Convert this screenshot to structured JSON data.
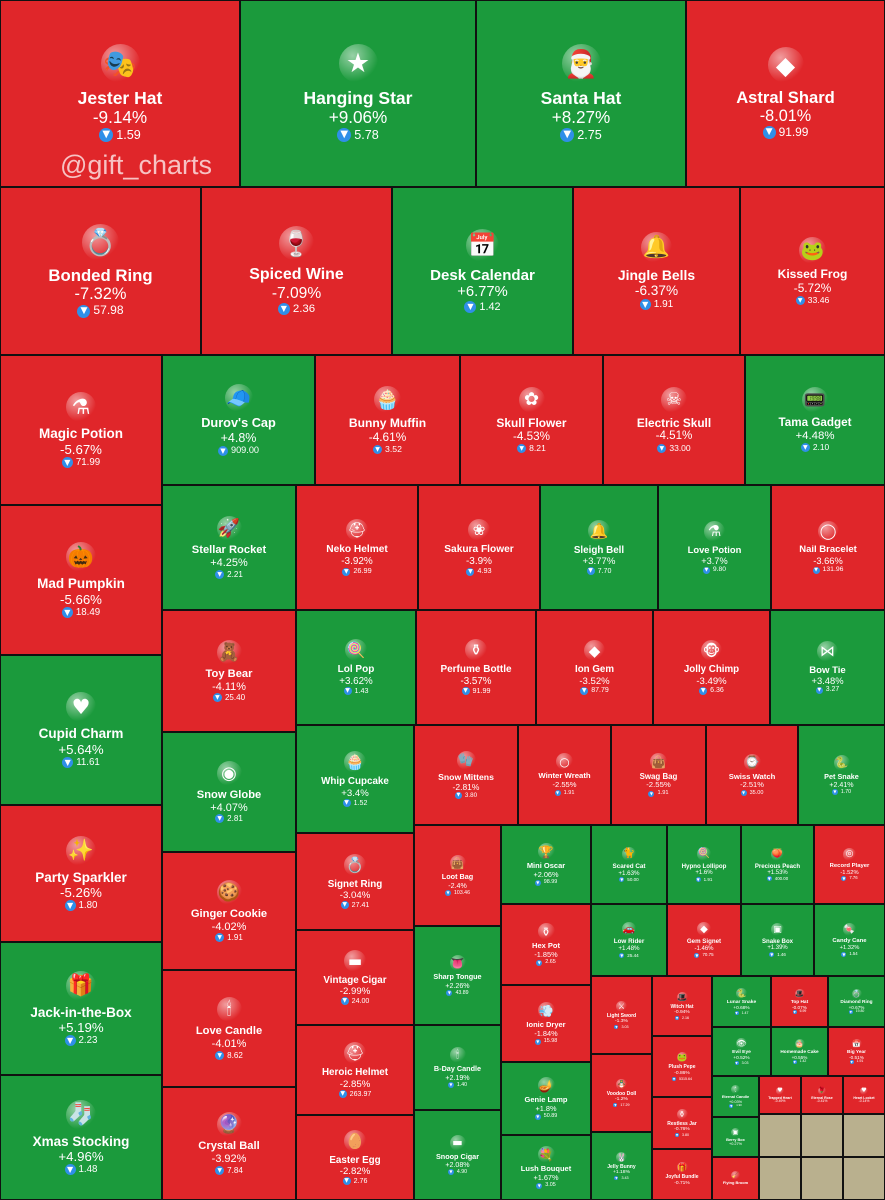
{
  "watermark": "@gift_charts",
  "colors": {
    "gain": "#1b9a3c",
    "loss": "#e0262a",
    "ton": "#2f8fe8"
  },
  "chart_data": {
    "type": "treemap",
    "fields": [
      "name",
      "change",
      "price",
      "icon"
    ],
    "items": [
      [
        "Jester Hat",
        "-9.14%",
        "1.59",
        "jester-hat-icon"
      ],
      [
        "Hanging Star",
        "+9.06%",
        "5.78",
        "star-icon"
      ],
      [
        "Santa Hat",
        "+8.27%",
        "2.75",
        "santa-hat-icon"
      ],
      [
        "Astral Shard",
        "-8.01%",
        "91.99",
        "crystal-icon"
      ],
      [
        "Bonded Ring",
        "-7.32%",
        "57.98",
        "ring-icon"
      ],
      [
        "Spiced Wine",
        "-7.09%",
        "2.36",
        "wine-icon"
      ],
      [
        "Desk Calendar",
        "+6.77%",
        "1.42",
        "calendar-icon"
      ],
      [
        "Jingle Bells",
        "-6.37%",
        "1.91",
        "bells-icon"
      ],
      [
        "Kissed Frog",
        "-5.72%",
        "33.46",
        "frog-icon"
      ],
      [
        "Magic Potion",
        "-5.67%",
        "71.99",
        "potion-icon"
      ],
      [
        "Durov's Cap",
        "+4.8%",
        "909.00",
        "cap-icon"
      ],
      [
        "Bunny Muffin",
        "-4.61%",
        "3.52",
        "muffin-icon"
      ],
      [
        "Skull Flower",
        "-4.53%",
        "8.21",
        "flower-icon"
      ],
      [
        "Electric Skull",
        "-4.51%",
        "33.00",
        "skull-icon"
      ],
      [
        "Tama Gadget",
        "+4.48%",
        "2.10",
        "gadget-icon"
      ],
      [
        "Mad Pumpkin",
        "-5.66%",
        "18.49",
        "pumpkin-icon"
      ],
      [
        "Stellar Rocket",
        "+4.25%",
        "2.21",
        "rocket-icon"
      ],
      [
        "Neko Helmet",
        "-3.92%",
        "26.99",
        "helmet-icon"
      ],
      [
        "Sakura Flower",
        "-3.9%",
        "4.93",
        "sakura-icon"
      ],
      [
        "Sleigh Bell",
        "+3.77%",
        "7.70",
        "bell-icon"
      ],
      [
        "Love Potion",
        "+3.7%",
        "9.80",
        "potion-icon"
      ],
      [
        "Nail Bracelet",
        "-3.66%",
        "131.96",
        "bracelet-icon"
      ],
      [
        "Toy Bear",
        "-4.11%",
        "25.40",
        "bear-icon"
      ],
      [
        "Lol Pop",
        "+3.62%",
        "1.43",
        "lollipop-icon"
      ],
      [
        "Perfume Bottle",
        "-3.57%",
        "91.99",
        "perfume-icon"
      ],
      [
        "Ion Gem",
        "-3.52%",
        "87.79",
        "gem-icon"
      ],
      [
        "Jolly Chimp",
        "-3.49%",
        "6.36",
        "chimp-icon"
      ],
      [
        "Bow Tie",
        "+3.48%",
        "3.27",
        "bowtie-icon"
      ],
      [
        "Cupid Charm",
        "+5.64%",
        "11.61",
        "heart-icon"
      ],
      [
        "Snow Globe",
        "+4.07%",
        "2.81",
        "globe-icon"
      ],
      [
        "Whip Cupcake",
        "+3.4%",
        "1.52",
        "cupcake-icon"
      ],
      [
        "Snow Mittens",
        "-2.81%",
        "3.80",
        "mittens-icon"
      ],
      [
        "Winter Wreath",
        "-2.55%",
        "1.91",
        "wreath-icon"
      ],
      [
        "Swag Bag",
        "-2.55%",
        "1.91",
        "bag-icon"
      ],
      [
        "Swiss Watch",
        "-2.51%",
        "35.00",
        "watch-icon"
      ],
      [
        "Pet Snake",
        "+2.41%",
        "1.70",
        "snake-icon"
      ],
      [
        "Party Sparkler",
        "-5.26%",
        "1.80",
        "sparkler-icon"
      ],
      [
        "Ginger Cookie",
        "-4.02%",
        "1.91",
        "cookie-icon"
      ],
      [
        "Signet Ring",
        "-3.04%",
        "27.41",
        "ring-icon"
      ],
      [
        "Loot Bag",
        "-2.4%",
        "103.46",
        "bag-icon"
      ],
      [
        "Mini Oscar",
        "+2.06%",
        "98.99",
        "trophy-icon"
      ],
      [
        "Scared Cat",
        "+1.63%",
        "50.00",
        "cat-icon"
      ],
      [
        "Hypno Lollipop",
        "+1.6%",
        "1.91",
        "lollipop-icon"
      ],
      [
        "Precious Peach",
        "+1.53%",
        "400.00",
        "peach-icon"
      ],
      [
        "Record Player",
        "-1.52%",
        "7.76",
        "record-icon"
      ],
      [
        "Hex Pot",
        "-1.85%",
        "2.65",
        "pot-icon"
      ],
      [
        "Low Rider",
        "+1.48%",
        "25.44",
        "car-icon"
      ],
      [
        "Gem Signet",
        "-1.46%",
        "70.75",
        "gem-icon"
      ],
      [
        "Snake Box",
        "+1.39%",
        "1.46",
        "box-icon"
      ],
      [
        "Candy Cane",
        "+1.32%",
        "1.54",
        "candy-cane-icon"
      ],
      [
        "Jack-in-the-Box",
        "+5.19%",
        "2.23",
        "jack-box-icon"
      ],
      [
        "Love Candle",
        "-4.01%",
        "8.62",
        "candle-icon"
      ],
      [
        "Vintage Cigar",
        "-2.99%",
        "24.00",
        "cigar-icon"
      ],
      [
        "Sharp Tongue",
        "+2.26%",
        "43.89",
        "tongue-icon"
      ],
      [
        "Ionic Dryer",
        "-1.84%",
        "15.98",
        "dryer-icon"
      ],
      [
        "Light Sword",
        "-1.3%",
        "3.03",
        "sword-icon"
      ],
      [
        "Witch Hat",
        "-0.94%",
        "2.16",
        "witch-hat-icon"
      ],
      [
        "Lunar Snake",
        "+0.68%",
        "1.47",
        "snake-icon"
      ],
      [
        "Top Hat",
        "-0.07%",
        "6.99",
        "top-hat-icon"
      ],
      [
        "Diamond Ring",
        "+0.67%",
        "19.80",
        "ring-icon"
      ],
      [
        "Evil Eye",
        "+0.52%",
        "3.03",
        "eye-icon"
      ],
      [
        "Homemade Cake",
        "+0.55%",
        "1.42",
        "cake-icon"
      ],
      [
        "Big Year",
        "-0.51%",
        "1.91",
        "calendar-icon"
      ],
      [
        "Heroic Helmet",
        "-2.85%",
        "263.97",
        "helmet-icon"
      ],
      [
        "B-Day Candle",
        "+2.19%",
        "1.40",
        "candle-icon"
      ],
      [
        "Genie Lamp",
        "+1.8%",
        "50.89",
        "lamp-icon"
      ],
      [
        "Voodoo Doll",
        "-1.2%",
        "17.29",
        "doll-icon"
      ],
      [
        "Plush Pepe",
        "-0.86%",
        "5315.64",
        "frog-icon"
      ],
      [
        "Eternal Candle",
        "+0.03%",
        "1.90",
        "candle-icon"
      ],
      [
        "Trapped Heart",
        "-0.49%",
        "",
        "heart-icon"
      ],
      [
        "Eternal Rose",
        "-0.41%",
        "",
        "rose-icon"
      ],
      [
        "Heart Locket",
        "-0.14%",
        "",
        "locket-icon"
      ],
      [
        "Restless Jar",
        "-0.76%",
        "3.80",
        "jar-icon"
      ],
      [
        "Berry Box",
        "+0.27%",
        "",
        "box-icon"
      ],
      [
        "Xmas Stocking",
        "+4.96%",
        "1.48",
        "stocking-icon"
      ],
      [
        "Crystal Ball",
        "-3.92%",
        "7.84",
        "ball-icon"
      ],
      [
        "Easter Egg",
        "-2.82%",
        "2.76",
        "egg-icon"
      ],
      [
        "Snoop Cigar",
        "+2.08%",
        "4.90",
        "cigar-icon"
      ],
      [
        "Lush Bouquet",
        "+1.67%",
        "3.05",
        "bouquet-icon"
      ],
      [
        "Jelly Bunny",
        "+1.18%",
        "3.43",
        "bunny-icon"
      ],
      [
        "Joyful Bundle",
        "-0.71%",
        "",
        "bundle-icon"
      ],
      [
        "Flying Broom",
        "",
        "",
        "broom-icon"
      ]
    ]
  }
}
